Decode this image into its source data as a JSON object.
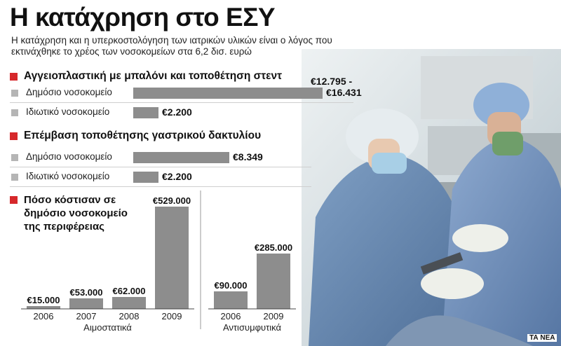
{
  "title": "Η κατάχρηση στο ΕΣΥ",
  "subtitle": "Η κατάχρηση και η υπερκοστολόγηση των ιατρικών υλικών είναι ο λόγος που εκτινάχθηκε το χρέος των νοσοκομείων στα 6,2 δισ. ευρώ",
  "credit": "ΤΑ ΝΕΑ",
  "colors": {
    "accent": "#d6282b",
    "bar": "#8d8d8d",
    "legend_square": "#b5b5b5"
  },
  "sections": [
    {
      "heading": "Αγγειοπλαστική με μπαλόνι και τοποθέτηση στεντ",
      "rows": [
        {
          "label": "Δημόσιο νοσοκομείο",
          "value": 16431,
          "value_label": "€16.431",
          "range_low_label": "€12.795 -"
        },
        {
          "label": "Ιδιωτικό νοσοκομείο",
          "value": 2200,
          "value_label": "€2.200"
        }
      ]
    },
    {
      "heading": "Επέμβαση τοποθέτησης γαστρικού δακτυλίου",
      "rows": [
        {
          "label": "Δημόσιο νοσοκομείο",
          "value": 8349,
          "value_label": "€8.349"
        },
        {
          "label": "Ιδιωτικό νοσοκομείο",
          "value": 2200,
          "value_label": "€2.200"
        }
      ]
    }
  ],
  "cost_heading": "Πόσο κόστισαν σε δημόσιο νοσοκομείο της περιφέρειας",
  "chart_data": [
    {
      "type": "bar",
      "orientation": "horizontal",
      "title": "Αγγειοπλαστική με μπαλόνι και τοποθέτηση στεντ",
      "categories": [
        "Δημόσιο νοσοκομείο",
        "Ιδιωτικό νοσοκομείο"
      ],
      "values": [
        16431,
        2200
      ],
      "range_low": [
        12795,
        null
      ],
      "unit": "€"
    },
    {
      "type": "bar",
      "orientation": "horizontal",
      "title": "Επέμβαση τοποθέτησης γαστρικού δακτυλίου",
      "categories": [
        "Δημόσιο νοσοκομείο",
        "Ιδιωτικό νοσοκομείο"
      ],
      "values": [
        8349,
        2200
      ],
      "unit": "€"
    },
    {
      "type": "bar",
      "orientation": "vertical",
      "title": "Πόσο κόστισαν σε δημόσιο νοσοκομείο της περιφέρειας",
      "groups": [
        {
          "name": "Αιμοστατικά",
          "categories": [
            "2006",
            "2007",
            "2008",
            "2009"
          ],
          "values": [
            15000,
            53000,
            62000,
            529000
          ],
          "value_labels": [
            "€15.000",
            "€53.000",
            "€62.000",
            "€529.000"
          ]
        },
        {
          "name": "Αντισυμφυτικά",
          "categories": [
            "2006",
            "2009"
          ],
          "values": [
            90000,
            285000
          ],
          "value_labels": [
            "€90.000",
            "€285.000"
          ]
        }
      ],
      "ylim": [
        0,
        529000
      ],
      "grid": false,
      "unit": "€"
    }
  ]
}
